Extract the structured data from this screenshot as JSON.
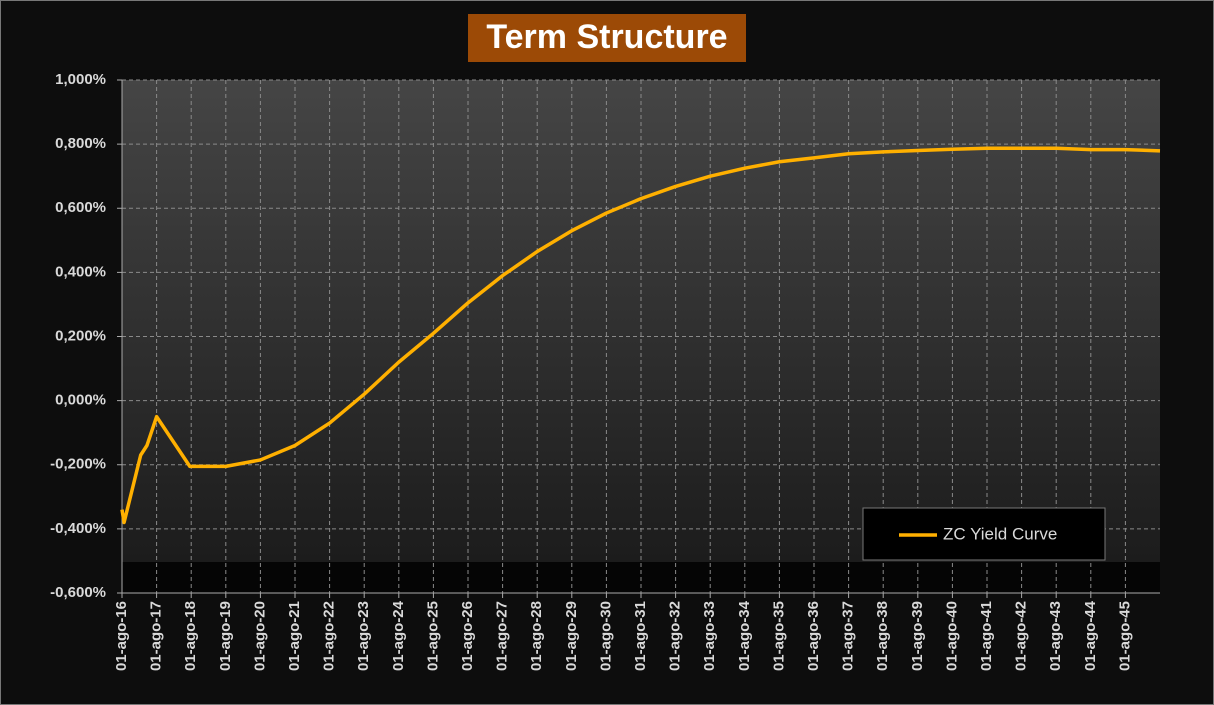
{
  "chart_data": {
    "type": "line",
    "title": "Term Structure",
    "x": [
      2016.58,
      2016.64,
      2017.12,
      2017.3,
      2017.58,
      2018.54,
      2018.7,
      2019.58,
      2020.58,
      2021.58,
      2022.58,
      2023.58,
      2024.58,
      2025.58,
      2026.58,
      2027.58,
      2028.58,
      2029.58,
      2030.58,
      2031.58,
      2032.58,
      2033.58,
      2034.58,
      2035.58,
      2036.58,
      2037.58,
      2038.58,
      2039.58,
      2040.58,
      2041.58,
      2042.58,
      2043.58,
      2044.58,
      2045.58,
      2046.58
    ],
    "series": [
      {
        "name": "ZC Yield Curve",
        "color": "#ffb000",
        "values": [
          -0.34,
          -0.38,
          -0.17,
          -0.14,
          -0.05,
          -0.205,
          -0.205,
          -0.205,
          -0.185,
          -0.14,
          -0.07,
          0.02,
          0.12,
          0.21,
          0.305,
          0.39,
          0.465,
          0.53,
          0.585,
          0.63,
          0.668,
          0.7,
          0.725,
          0.745,
          0.757,
          0.77,
          0.776,
          0.78,
          0.784,
          0.787,
          0.787,
          0.787,
          0.783,
          0.783,
          0.779
        ]
      }
    ],
    "xlim": [
      2016.58,
      2046.58
    ],
    "xticks": [
      {
        "value": 2016.58,
        "label": "01-ago-16"
      },
      {
        "value": 2017.58,
        "label": "01-ago-17"
      },
      {
        "value": 2018.58,
        "label": "01-ago-18"
      },
      {
        "value": 2019.58,
        "label": "01-ago-19"
      },
      {
        "value": 2020.58,
        "label": "01-ago-20"
      },
      {
        "value": 2021.58,
        "label": "01-ago-21"
      },
      {
        "value": 2022.58,
        "label": "01-ago-22"
      },
      {
        "value": 2023.58,
        "label": "01-ago-23"
      },
      {
        "value": 2024.58,
        "label": "01-ago-24"
      },
      {
        "value": 2025.58,
        "label": "01-ago-25"
      },
      {
        "value": 2026.58,
        "label": "01-ago-26"
      },
      {
        "value": 2027.58,
        "label": "01-ago-27"
      },
      {
        "value": 2028.58,
        "label": "01-ago-28"
      },
      {
        "value": 2029.58,
        "label": "01-ago-29"
      },
      {
        "value": 2030.58,
        "label": "01-ago-30"
      },
      {
        "value": 2031.58,
        "label": "01-ago-31"
      },
      {
        "value": 2032.58,
        "label": "01-ago-32"
      },
      {
        "value": 2033.58,
        "label": "01-ago-33"
      },
      {
        "value": 2034.58,
        "label": "01-ago-34"
      },
      {
        "value": 2035.58,
        "label": "01-ago-35"
      },
      {
        "value": 2036.58,
        "label": "01-ago-36"
      },
      {
        "value": 2037.58,
        "label": "01-ago-37"
      },
      {
        "value": 2038.58,
        "label": "01-ago-38"
      },
      {
        "value": 2039.58,
        "label": "01-ago-39"
      },
      {
        "value": 2040.58,
        "label": "01-ago-40"
      },
      {
        "value": 2041.58,
        "label": "01-ago-41"
      },
      {
        "value": 2042.58,
        "label": "01-ago-42"
      },
      {
        "value": 2043.58,
        "label": "01-ago-43"
      },
      {
        "value": 2044.58,
        "label": "01-ago-44"
      },
      {
        "value": 2045.58,
        "label": "01-ago-45"
      }
    ],
    "ylim": [
      -0.6,
      1.0
    ],
    "yticks": [
      {
        "value": -0.6,
        "label": "-0,600%"
      },
      {
        "value": -0.4,
        "label": "-0,400%"
      },
      {
        "value": -0.2,
        "label": "-0,200%"
      },
      {
        "value": 0,
        "label": "0,000%"
      },
      {
        "value": 0.2,
        "label": "0,200%"
      },
      {
        "value": 0.4,
        "label": "0,400%"
      },
      {
        "value": 0.6,
        "label": "0,600%"
      },
      {
        "value": 0.8,
        "label": "0,800%"
      },
      {
        "value": 1.0,
        "label": "1,000%"
      }
    ],
    "grid": true,
    "legend": "lower right"
  }
}
